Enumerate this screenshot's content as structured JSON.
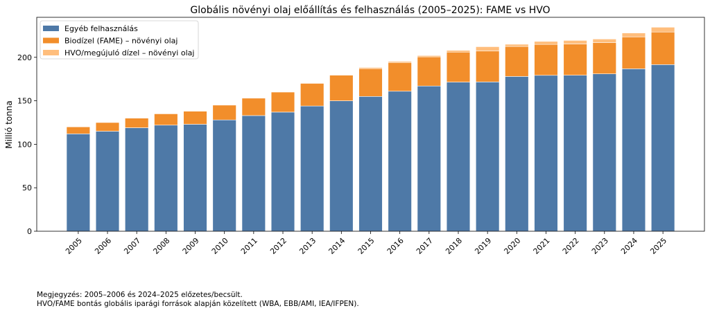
{
  "chart_data": {
    "type": "bar",
    "stacked": true,
    "title": "Globális növényi olaj előállítás és felhasználás (2005–2025): FAME vs HVO",
    "xlabel": "",
    "ylabel": "Millió tonna",
    "ylim": [
      0,
      246
    ],
    "yticks": [
      0,
      50,
      100,
      150,
      200
    ],
    "grid": false,
    "legend_position": "top-left",
    "categories": [
      "2005",
      "2006",
      "2007",
      "2008",
      "2009",
      "2010",
      "2011",
      "2012",
      "2013",
      "2014",
      "2015",
      "2016",
      "2017",
      "2018",
      "2019",
      "2020",
      "2021",
      "2022",
      "2023",
      "2024",
      "2025"
    ],
    "series": [
      {
        "name": "Egyéb felhasználás",
        "color": "#4e79a7",
        "values": [
          112,
          115,
          119,
          122,
          123,
          128,
          133,
          137,
          144,
          150,
          155,
          161,
          167,
          171.5,
          171.7,
          178,
          179.3,
          179.4,
          181,
          186.8,
          191.6
        ]
      },
      {
        "name": "Biodízel (FAME) – növényi olaj",
        "color": "#f28e2b",
        "values": [
          8,
          10,
          11,
          13,
          15,
          17,
          20,
          23,
          26,
          29.5,
          32,
          33,
          33.5,
          34.5,
          35.5,
          34.5,
          35.5,
          36,
          36,
          36.7,
          37.5
        ]
      },
      {
        "name": "HVO/megújuló dízel – növényi olaj",
        "color": "#ffbe7d",
        "values": [
          0,
          0,
          0,
          0,
          0,
          0,
          0,
          0,
          0,
          0.5,
          1.3,
          1.3,
          1.5,
          2,
          5,
          2.5,
          3.5,
          4,
          4,
          4.5,
          5.5
        ]
      }
    ]
  },
  "notes": [
    "Megjegyzés: 2005–2006 és 2024–2025 előzetes/becsült.",
    "HVO/FAME bontás globális iparági források alapján közelített (WBA, EBB/AMI, IEA/IFPEN)."
  ]
}
